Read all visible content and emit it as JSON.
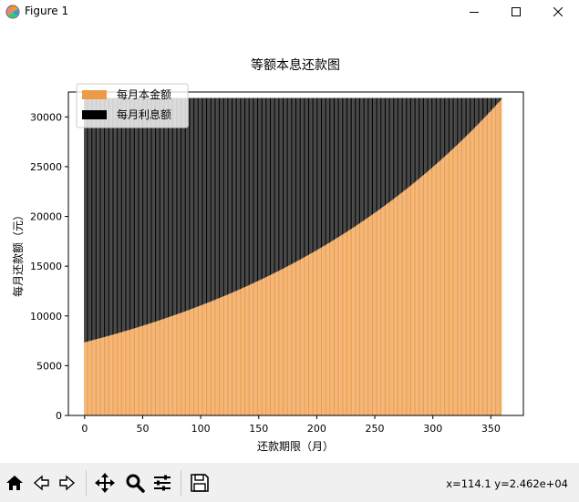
{
  "window": {
    "title": "Figure 1",
    "buttons": {
      "minimize": "minimize-icon",
      "maximize": "maximize-icon",
      "close": "close-icon"
    }
  },
  "chart_data": {
    "type": "bar",
    "stacked": true,
    "title": "等额本息还款图",
    "xlabel": "还款期限（月）",
    "ylabel": "每月还款额（元）",
    "xlim": [
      -14,
      378
    ],
    "ylim": [
      0,
      32500
    ],
    "xticks": [
      0,
      50,
      100,
      150,
      200,
      250,
      300,
      350
    ],
    "yticks": [
      0,
      5000,
      10000,
      15000,
      20000,
      25000,
      30000
    ],
    "months": 360,
    "monthly_payment": 31900,
    "principal_start": 7350,
    "principal_end": 31750,
    "legend_position": "upper-left",
    "series": [
      {
        "name": "每月本金额",
        "color": "#ee9b47"
      },
      {
        "name": "每月利息额",
        "color": "#000000"
      }
    ]
  },
  "toolbar": {
    "buttons": [
      "home-icon",
      "back-icon",
      "forward-icon",
      "pan-icon",
      "zoom-icon",
      "configure-icon",
      "save-icon"
    ],
    "coords": "x=114.1 y=2.462e+04"
  }
}
